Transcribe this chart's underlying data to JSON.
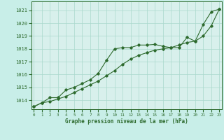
{
  "title": "Graphe pression niveau de la mer (hPa)",
  "background_color": "#c8eee8",
  "grid_color": "#aad8cc",
  "line_color": "#2d6a2d",
  "plot_bg": "#d8f0ec",
  "xlim": [
    -0.3,
    23.3
  ],
  "ylim": [
    1013.3,
    1021.7
  ],
  "yticks": [
    1014,
    1015,
    1016,
    1017,
    1018,
    1019,
    1020,
    1021
  ],
  "xticks": [
    0,
    1,
    2,
    3,
    4,
    5,
    6,
    7,
    8,
    9,
    10,
    11,
    12,
    13,
    14,
    15,
    16,
    17,
    18,
    19,
    20,
    21,
    22,
    23
  ],
  "series1_x": [
    0,
    1,
    2,
    3,
    4,
    5,
    6,
    7,
    8,
    9,
    10,
    11,
    12,
    13,
    14,
    15,
    16,
    17,
    18,
    19,
    20,
    21,
    22,
    23
  ],
  "series1_y": [
    1013.5,
    1013.8,
    1013.9,
    1014.1,
    1014.3,
    1014.6,
    1014.9,
    1015.2,
    1015.5,
    1015.9,
    1016.3,
    1016.8,
    1017.2,
    1017.5,
    1017.7,
    1017.9,
    1018.0,
    1018.1,
    1018.3,
    1018.5,
    1018.6,
    1019.0,
    1019.8,
    1021.1
  ],
  "series2_x": [
    0,
    1,
    2,
    3,
    4,
    5,
    6,
    7,
    8,
    9,
    10,
    11,
    12,
    13,
    14,
    15,
    16,
    17,
    18,
    19,
    20,
    21,
    22,
    23
  ],
  "series2_y": [
    1013.5,
    1013.8,
    1014.2,
    1014.2,
    1014.8,
    1015.0,
    1015.3,
    1015.6,
    1016.1,
    1017.1,
    1018.0,
    1018.1,
    1018.1,
    1018.3,
    1018.3,
    1018.35,
    1018.2,
    1018.1,
    1018.1,
    1018.9,
    1018.6,
    1019.9,
    1020.9,
    1021.1
  ],
  "figsize": [
    3.2,
    2.0
  ],
  "dpi": 100
}
